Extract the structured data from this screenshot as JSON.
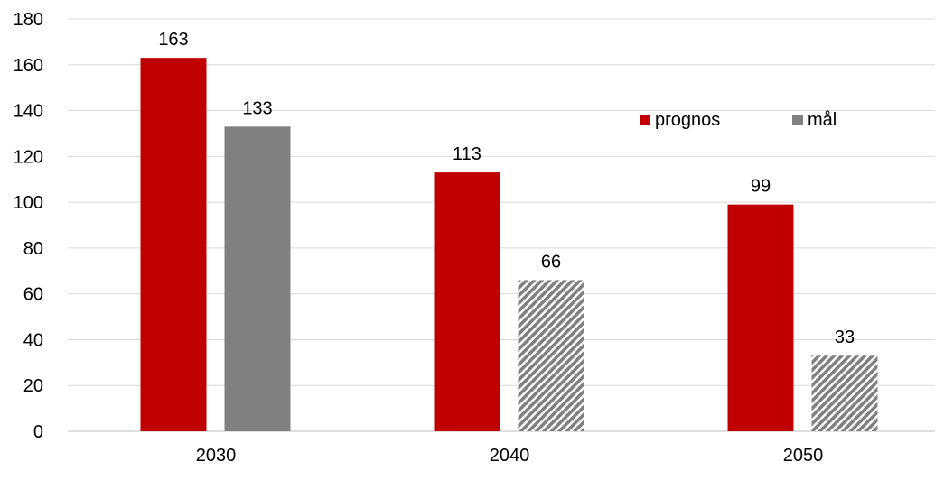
{
  "chart_data": {
    "type": "bar",
    "categories": [
      "2030",
      "2040",
      "2050"
    ],
    "series": [
      {
        "name": "prognos",
        "values": [
          163,
          113,
          99
        ],
        "color": "#c00000"
      },
      {
        "name": "mål",
        "values": [
          133,
          66,
          33
        ],
        "color": "#808080",
        "patterns": [
          "solid",
          "diagonal-hatch",
          "diagonal-hatch"
        ]
      }
    ],
    "data_labels": [
      [
        "163",
        "113",
        "99"
      ],
      [
        "133",
        "66",
        "33"
      ]
    ],
    "yticks": [
      "0",
      "20",
      "40",
      "60",
      "80",
      "100",
      "120",
      "140",
      "160",
      "180"
    ],
    "ylim": [
      0,
      180
    ],
    "grid": true,
    "legend": "top-right",
    "title": "",
    "xlabel": "",
    "ylabel": ""
  }
}
